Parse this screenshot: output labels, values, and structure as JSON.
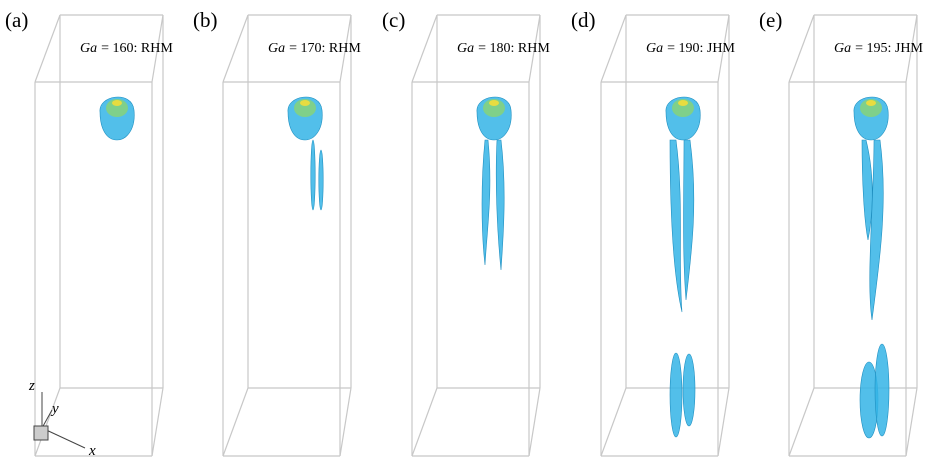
{
  "panels": [
    {
      "label": "(a)",
      "symbol": "Ga",
      "text": "= 160: RHM"
    },
    {
      "label": "(b)",
      "symbol": "Ga",
      "text": "= 170: RHM"
    },
    {
      "label": "(c)",
      "symbol": "Ga",
      "text": "= 180: RHM"
    },
    {
      "label": "(d)",
      "symbol": "Ga",
      "text": "= 190: JHM"
    },
    {
      "label": "(e)",
      "symbol": "Ga",
      "text": "= 195: JHM"
    }
  ],
  "axes": {
    "z": "z",
    "y": "y",
    "x": "x"
  }
}
